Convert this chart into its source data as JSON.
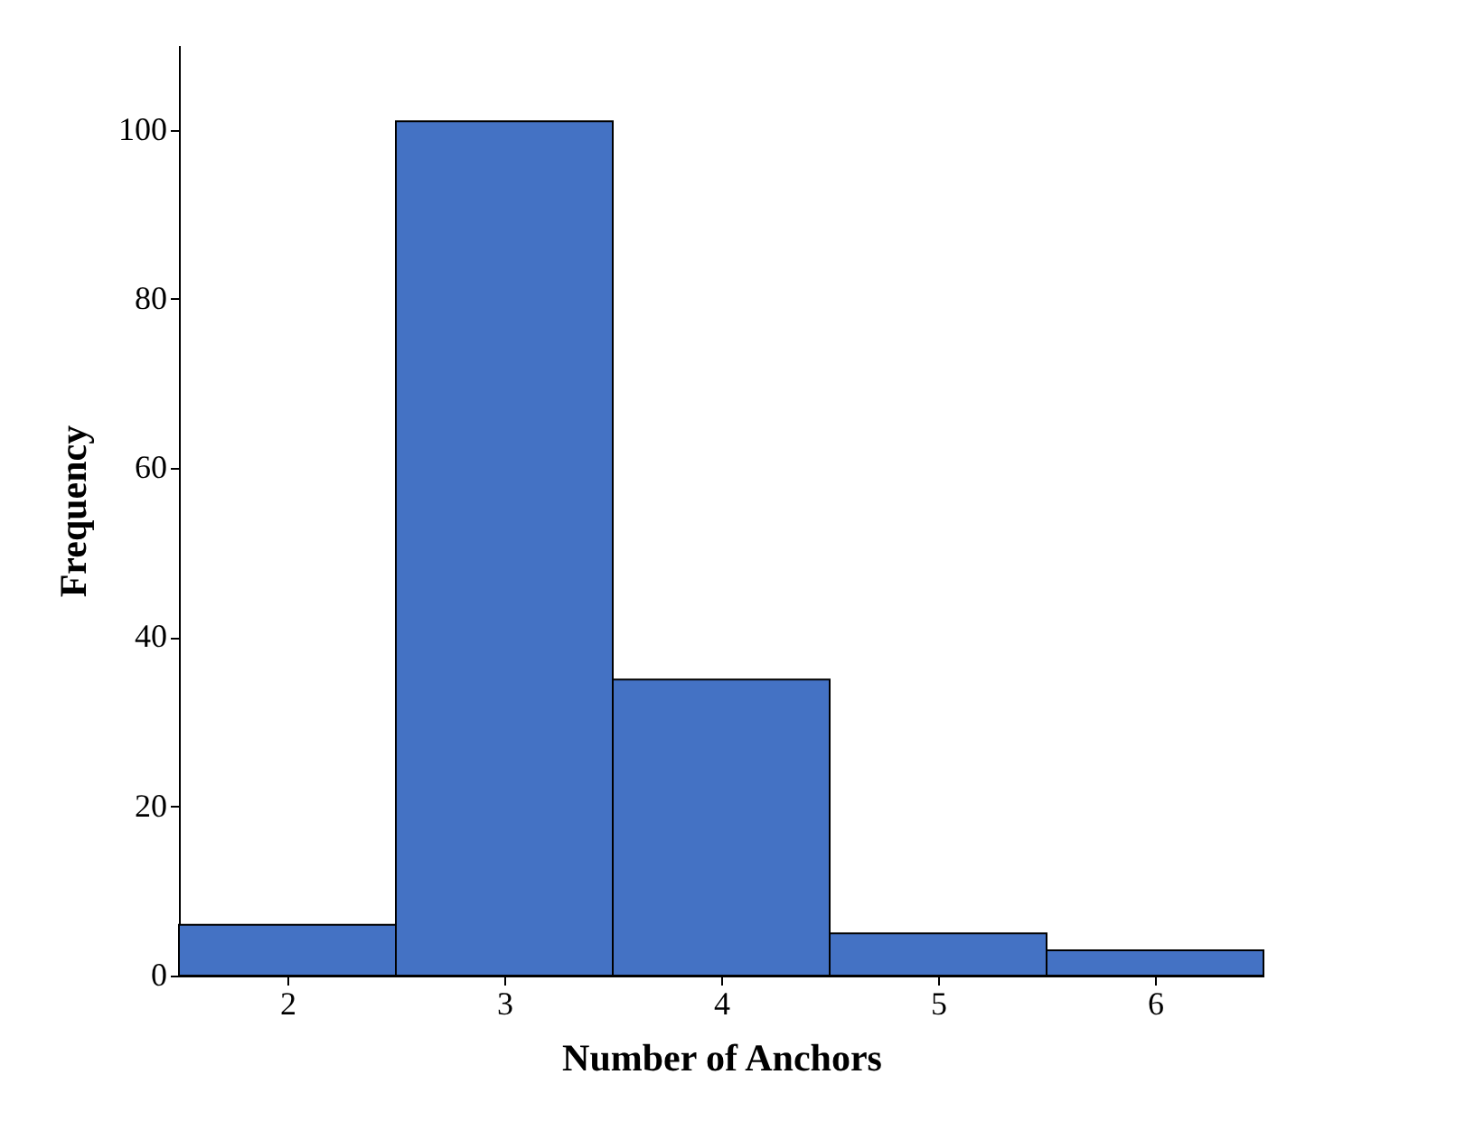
{
  "chart_data": {
    "type": "histogram",
    "xlabel": "Number of Anchors",
    "ylabel": "Frequency",
    "bins": [
      1.5,
      2.5,
      3.5,
      4.5,
      5.5,
      6.5
    ],
    "values": [
      6,
      101,
      35,
      5,
      3
    ],
    "color": "#4472c4",
    "xlim": [
      1.5,
      6.5
    ],
    "xticks": [
      2,
      3,
      4,
      5,
      6
    ],
    "ylim": [
      0,
      110
    ],
    "yticks": [
      0,
      20,
      40,
      60,
      80,
      100
    ],
    "grid": false
  }
}
